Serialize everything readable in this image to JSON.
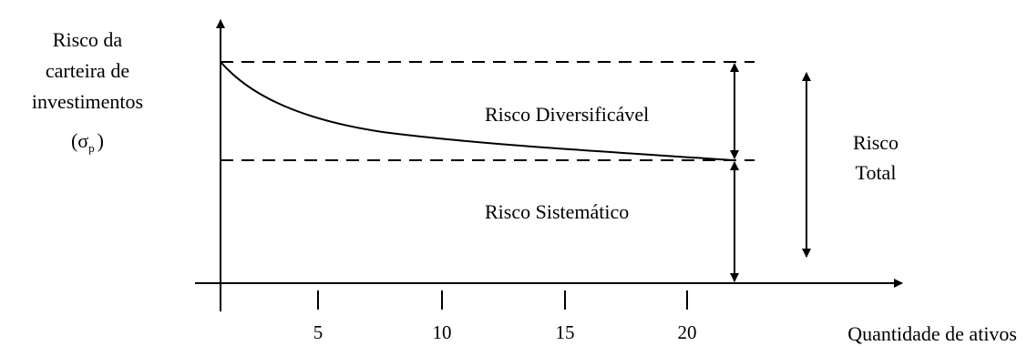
{
  "diagram": {
    "y_axis_label_lines": [
      "Risco da",
      "carteira de",
      "investimentos",
      "(σ"
    ],
    "y_axis_label_subscript": "p",
    "y_axis_label_close": ")",
    "x_axis_label": "Quantidade de ativos",
    "x_ticks": [
      "5",
      "10",
      "15",
      "20"
    ],
    "diversifiable_label": "Risco Diversificável",
    "systematic_label": "Risco Sistemático",
    "total_label_lines": [
      "Risco",
      "Total"
    ]
  },
  "colors": {
    "stroke": "#000000",
    "background": "#ffffff"
  }
}
